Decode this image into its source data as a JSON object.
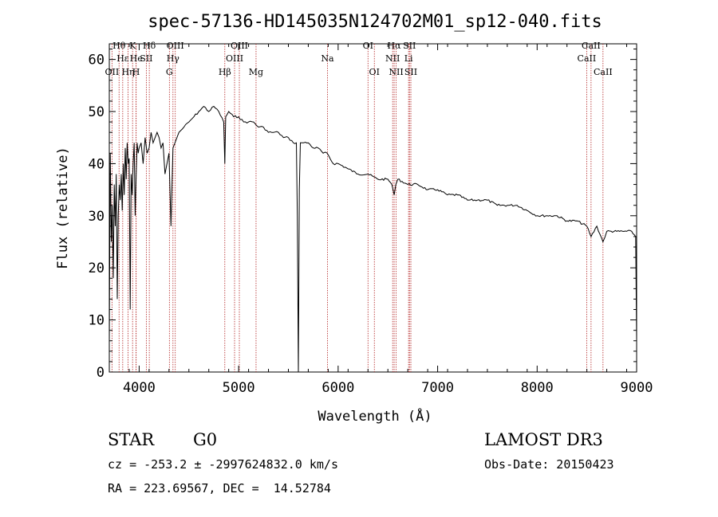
{
  "chart_data": {
    "type": "line",
    "title": "spec-57136-HD145035N124702M01_sp12-040.fits",
    "xlabel": "Wavelength (Å)",
    "ylabel": "Flux (relative)",
    "xlim": [
      3700,
      9000
    ],
    "ylim": [
      0,
      63
    ],
    "xticks": [
      4000,
      5000,
      6000,
      7000,
      8000,
      9000
    ],
    "yticks": [
      0,
      10,
      20,
      30,
      40,
      50,
      60
    ],
    "grid": false,
    "line_color": "#000000",
    "marker_color": "#b22222",
    "series": [
      {
        "x": [
          3700,
          3710,
          3720,
          3730,
          3740,
          3750,
          3760,
          3770,
          3780,
          3790,
          3800,
          3810,
          3820,
          3830,
          3840,
          3850,
          3860,
          3870,
          3880,
          3890,
          3900,
          3910,
          3920,
          3930,
          3940,
          3950,
          3960,
          3970,
          3980,
          3990,
          4000,
          4020,
          4040,
          4060,
          4080,
          4100,
          4120,
          4140,
          4160,
          4180,
          4200,
          4220,
          4240,
          4260,
          4280,
          4300,
          4320,
          4340,
          4360,
          4380,
          4400,
          4450,
          4500,
          4550,
          4600,
          4650,
          4700,
          4750,
          4800,
          4850,
          4861,
          4870,
          4900,
          4950,
          5000,
          5050,
          5100,
          5150,
          5200,
          5250,
          5300,
          5350,
          5400,
          5450,
          5500,
          5550,
          5580,
          5590,
          5600,
          5610,
          5620,
          5640,
          5700,
          5750,
          5800,
          5850,
          5890,
          5950,
          6000,
          6100,
          6200,
          6300,
          6400,
          6500,
          6540,
          6563,
          6580,
          6600,
          6700,
          6800,
          6900,
          7000,
          7100,
          7200,
          7300,
          7400,
          7500,
          7600,
          7700,
          7800,
          7900,
          8000,
          8100,
          8200,
          8300,
          8400,
          8500,
          8542,
          8600,
          8662,
          8700,
          8800,
          8900,
          8950,
          8990,
          9000
        ],
        "y": [
          6,
          42,
          25,
          32,
          18,
          36,
          28,
          38,
          14,
          30,
          36,
          33,
          38,
          31,
          40,
          34,
          43,
          37,
          44,
          40,
          41,
          12,
          38,
          34,
          40,
          44,
          30,
          38,
          44,
          42,
          43,
          44,
          40,
          45,
          42,
          43,
          46,
          44,
          45,
          46,
          45,
          43,
          44,
          38,
          40,
          42,
          28,
          43,
          44,
          45,
          46,
          47,
          48,
          49,
          50,
          51,
          50,
          51,
          50,
          48,
          40,
          49,
          50,
          49,
          49,
          48,
          48,
          48,
          47,
          47,
          46,
          46,
          46,
          45,
          45,
          44,
          44,
          30,
          0,
          35,
          44,
          44,
          44,
          43,
          43,
          42,
          42,
          40,
          40,
          39,
          38,
          38,
          37,
          37,
          36,
          34,
          36,
          37,
          36,
          36,
          35,
          35,
          34,
          34,
          33,
          33,
          33,
          32,
          32,
          32,
          31,
          30,
          30,
          30,
          29,
          29,
          28,
          26,
          28,
          25,
          27,
          27,
          27,
          27,
          26,
          6
        ]
      }
    ],
    "lines": [
      {
        "label": "Hθ",
        "x": 3798,
        "row": 1
      },
      {
        "label": "OII",
        "x": 3727,
        "row": 3
      },
      {
        "label": "Hε",
        "x": 3835,
        "row": 2
      },
      {
        "label": "Hη",
        "x": 3889,
        "row": 3
      },
      {
        "label": "K",
        "x": 3934,
        "row": 1
      },
      {
        "label": "He",
        "x": 3970,
        "row": 2
      },
      {
        "label": "H",
        "x": 3969,
        "row": 3
      },
      {
        "label": "SII",
        "x": 4072,
        "row": 2
      },
      {
        "label": "Hδ",
        "x": 4102,
        "row": 1
      },
      {
        "label": "OIII",
        "x": 4363,
        "row": 1
      },
      {
        "label": "Hγ",
        "x": 4340,
        "row": 2
      },
      {
        "label": "G",
        "x": 4304,
        "row": 3
      },
      {
        "label": "Hβ",
        "x": 4861,
        "row": 3
      },
      {
        "label": "OIII",
        "x": 4959,
        "row": 2
      },
      {
        "label": "OIII",
        "x": 5007,
        "row": 1
      },
      {
        "label": "Mg",
        "x": 5175,
        "row": 3
      },
      {
        "label": "Na",
        "x": 5893,
        "row": 2
      },
      {
        "label": "OI",
        "x": 6300,
        "row": 1
      },
      {
        "label": "OI",
        "x": 6364,
        "row": 3
      },
      {
        "label": "Hα",
        "x": 6563,
        "row": 1
      },
      {
        "label": "NII",
        "x": 6548,
        "row": 2
      },
      {
        "label": "NII",
        "x": 6583,
        "row": 3
      },
      {
        "label": "SII",
        "x": 6717,
        "row": 1
      },
      {
        "label": "Li",
        "x": 6708,
        "row": 2
      },
      {
        "label": "SII",
        "x": 6731,
        "row": 3
      },
      {
        "label": "CaII",
        "x": 8498,
        "row": 2
      },
      {
        "label": "CaII",
        "x": 8542,
        "row": 1
      },
      {
        "label": "CaII",
        "x": 8662,
        "row": 3
      }
    ]
  },
  "info": {
    "object_class": "STAR",
    "subclass": "G0",
    "survey": "LAMOST DR3",
    "cz": "cz = -253.2 ± -2997624832.0 km/s",
    "obs_date": "Obs-Date: 20150423",
    "coords": "RA = 223.69567, DEC =  14.52784"
  }
}
